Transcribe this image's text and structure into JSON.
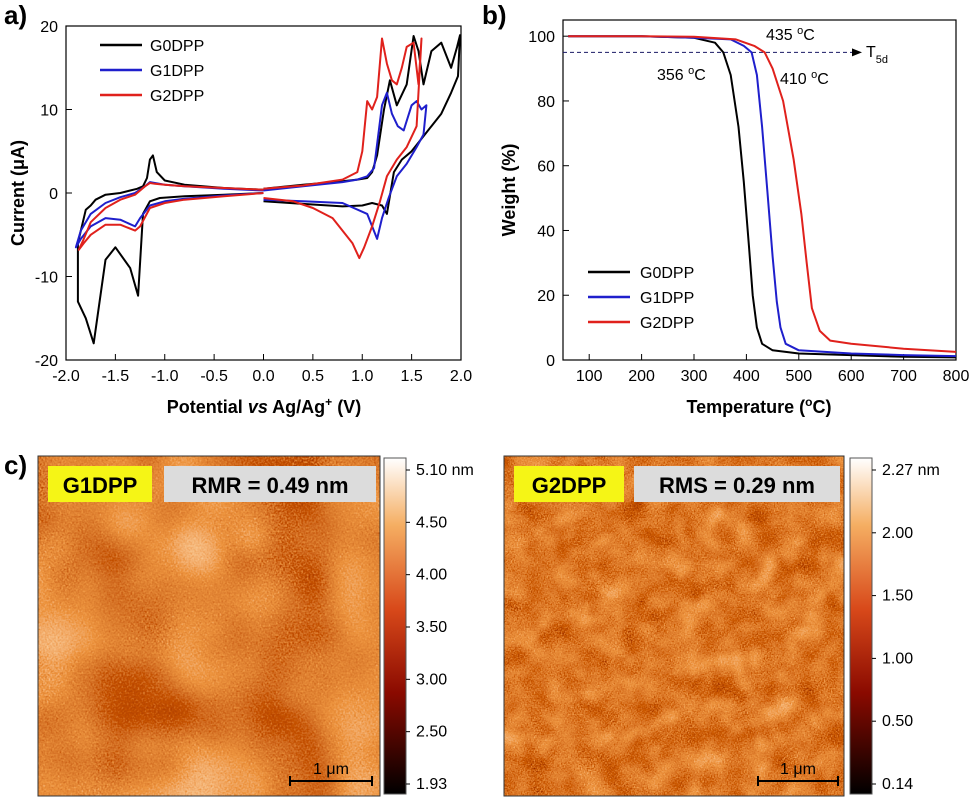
{
  "colors": {
    "G0DPP": "#000000",
    "G1DPP": "#1f1fcc",
    "G2DPP": "#e0211c"
  },
  "chart_data": [
    {
      "panel": "a)",
      "type": "line",
      "xlabel_pre": "Potential ",
      "xlabel_it": "vs",
      "xlabel_mid": " Ag/Ag",
      "xlabel_sup": "+",
      "xlabel_post": " (V)",
      "ylabel": "Current (μA)",
      "xlim": [
        -2.0,
        2.0
      ],
      "ylim": [
        -20,
        20
      ],
      "xticks": [
        "-2.0",
        "-1.5",
        "-1.0",
        "-0.5",
        "0.0",
        "0.5",
        "1.0",
        "1.5",
        "2.0"
      ],
      "yticks": [
        "-20",
        "-10",
        "0",
        "10",
        "20"
      ],
      "legend_position": "top-left",
      "series": [
        {
          "name": "G0DPP",
          "color": "#000000",
          "x": [
            0.0,
            0.4,
            0.8,
            0.95,
            1.05,
            1.1,
            1.15,
            1.22,
            1.28,
            1.35,
            1.45,
            1.52,
            1.57,
            1.62,
            1.7,
            1.8,
            1.9,
            1.96,
            1.99,
            1.97,
            1.9,
            1.8,
            1.7,
            1.6,
            1.5,
            1.4,
            1.32,
            1.25,
            1.2,
            1.1,
            1.0,
            0.8,
            0.4,
            0.0
          ],
          "y": [
            0.5,
            1.0,
            1.4,
            1.6,
            1.8,
            2.5,
            4.5,
            10.0,
            13.5,
            10.5,
            13.0,
            18.8,
            17.0,
            13.0,
            17.0,
            18.0,
            15.0,
            17.5,
            18.9,
            14.0,
            12.0,
            9.5,
            8.0,
            6.5,
            5.0,
            4.0,
            2.5,
            -2.5,
            -1.5,
            -1.2,
            -1.5,
            -1.6,
            -1.3,
            -1.0
          ]
        },
        {
          "name": "G1DPP",
          "color": "#1f1fcc",
          "x": [
            0.0,
            0.4,
            0.8,
            0.95,
            1.05,
            1.12,
            1.2,
            1.25,
            1.3,
            1.36,
            1.42,
            1.5,
            1.55,
            1.6,
            1.65,
            1.62,
            1.55,
            1.45,
            1.35,
            1.27,
            1.2,
            1.15,
            1.05,
            0.8,
            0.4,
            0.0
          ],
          "y": [
            0.3,
            0.8,
            1.3,
            1.6,
            2.0,
            3.0,
            10.5,
            12.0,
            9.5,
            8.0,
            7.5,
            10.5,
            11.0,
            10.0,
            10.5,
            7.0,
            5.5,
            3.5,
            2.0,
            -0.5,
            -3.0,
            -5.5,
            -2.5,
            -1.2,
            -1.0,
            -0.8
          ]
        },
        {
          "name": "G2DPP",
          "color": "#e0211c",
          "x": [
            0.0,
            0.4,
            0.8,
            0.95,
            1.0,
            1.05,
            1.1,
            1.15,
            1.2,
            1.25,
            1.3,
            1.35,
            1.4,
            1.45,
            1.52,
            1.57,
            1.6,
            1.55,
            1.45,
            1.35,
            1.25,
            1.18,
            1.1,
            1.02,
            0.97,
            0.9,
            0.7,
            0.5,
            0.3,
            0.0
          ],
          "y": [
            0.5,
            0.9,
            1.6,
            2.5,
            5.0,
            11.0,
            10.0,
            11.5,
            18.5,
            15.5,
            13.5,
            13.0,
            15.0,
            17.5,
            18.0,
            13.0,
            18.5,
            8.0,
            5.5,
            4.0,
            2.0,
            -1.0,
            -4.0,
            -6.5,
            -7.8,
            -6.0,
            -3.0,
            -1.8,
            -1.0,
            -0.6
          ]
        },
        {
          "name": "G0DPP-neg",
          "color": "#000000",
          "x": [
            0.0,
            -0.4,
            -0.8,
            -1.0,
            -1.08,
            -1.12,
            -1.15,
            -1.18,
            -1.22,
            -1.28,
            -1.35,
            -1.45,
            -1.6,
            -1.7,
            -1.75,
            -1.8,
            -1.88,
            -1.88,
            -1.8,
            -1.72,
            -1.6,
            -1.5,
            -1.35,
            -1.27,
            -1.22,
            -1.15,
            -1.05,
            -0.8,
            -0.4,
            0.0
          ],
          "y": [
            0.4,
            0.6,
            1.0,
            1.5,
            2.5,
            4.5,
            4.0,
            1.8,
            0.8,
            0.5,
            0.3,
            0.0,
            -0.2,
            -0.8,
            -1.5,
            -2.0,
            -6.0,
            -13.0,
            -15.0,
            -18.0,
            -8.0,
            -6.5,
            -9.0,
            -12.3,
            -2.5,
            -1.0,
            -0.6,
            -0.4,
            -0.2,
            0.0
          ]
        },
        {
          "name": "G1DPP-neg",
          "color": "#1f1fcc",
          "x": [
            0.0,
            -0.4,
            -0.8,
            -1.0,
            -1.1,
            -1.15,
            -1.2,
            -1.3,
            -1.45,
            -1.6,
            -1.75,
            -1.85,
            -1.9,
            -1.85,
            -1.75,
            -1.6,
            -1.45,
            -1.3,
            -1.25,
            -1.15,
            -1.0,
            -0.8,
            -0.4,
            0.0
          ],
          "y": [
            0.3,
            0.5,
            0.8,
            1.0,
            1.2,
            1.3,
            0.8,
            0.0,
            -0.5,
            -1.2,
            -2.5,
            -4.5,
            -6.5,
            -5.5,
            -4.0,
            -3.0,
            -3.2,
            -4.0,
            -3.0,
            -1.5,
            -1.0,
            -0.7,
            -0.3,
            0.0
          ]
        },
        {
          "name": "G2DPP-neg",
          "color": "#e0211c",
          "x": [
            0.0,
            -0.4,
            -0.8,
            -1.0,
            -1.1,
            -1.15,
            -1.2,
            -1.3,
            -1.45,
            -1.6,
            -1.75,
            -1.82,
            -1.87,
            -1.82,
            -1.75,
            -1.6,
            -1.45,
            -1.3,
            -1.25,
            -1.15,
            -1.0,
            -0.8,
            -0.4,
            0.0
          ],
          "y": [
            0.4,
            0.6,
            0.8,
            1.0,
            1.1,
            1.2,
            0.8,
            -0.2,
            -0.8,
            -1.8,
            -3.5,
            -5.5,
            -6.8,
            -6.0,
            -5.0,
            -3.8,
            -3.8,
            -4.5,
            -4.0,
            -1.8,
            -1.2,
            -0.8,
            -0.4,
            0.0
          ]
        }
      ]
    },
    {
      "panel": "b)",
      "type": "line",
      "xlabel_pre": "Temperature (",
      "xlabel_sup": "o",
      "xlabel_post": "C)",
      "ylabel": "Weight (%)",
      "xlim": [
        50,
        800
      ],
      "ylim": [
        0,
        105
      ],
      "xticks": [
        "100",
        "200",
        "300",
        "400",
        "500",
        "600",
        "700",
        "800"
      ],
      "yticks": [
        "0",
        "20",
        "40",
        "60",
        "80",
        "100"
      ],
      "legend_position": "bottom-left",
      "threshold": {
        "y": 95,
        "label": "T",
        "label_sub": "5d"
      },
      "annotations": [
        {
          "text": "356 ",
          "sup": "o",
          "post": "C",
          "color": "#000000"
        },
        {
          "text": "410 ",
          "sup": "o",
          "post": "C",
          "color": "#1f1fcc"
        },
        {
          "text": "435 ",
          "sup": "o",
          "post": "C",
          "color": "#e0211c"
        }
      ],
      "series": [
        {
          "name": "G0DPP",
          "color": "#000000",
          "x": [
            60,
            200,
            300,
            340,
            356,
            370,
            385,
            395,
            405,
            412,
            420,
            430,
            450,
            500,
            600,
            700,
            800
          ],
          "y": [
            100,
            100,
            99.5,
            98,
            95,
            88,
            72,
            55,
            35,
            20,
            10,
            5,
            3,
            2,
            1.5,
            1,
            0.8
          ]
        },
        {
          "name": "G1DPP",
          "color": "#1f1fcc",
          "x": [
            60,
            200,
            300,
            370,
            395,
            410,
            420,
            430,
            440,
            450,
            458,
            465,
            475,
            500,
            600,
            700,
            800
          ],
          "y": [
            100,
            100,
            99.5,
            99,
            97,
            95,
            88,
            72,
            52,
            32,
            18,
            10,
            5,
            3,
            2,
            1.5,
            1.2
          ]
        },
        {
          "name": "G2DPP",
          "color": "#e0211c",
          "x": [
            60,
            200,
            300,
            380,
            415,
            435,
            450,
            470,
            490,
            505,
            515,
            525,
            540,
            560,
            600,
            700,
            800
          ],
          "y": [
            100,
            100,
            99.8,
            99,
            97,
            95,
            90,
            80,
            62,
            45,
            30,
            16,
            9,
            6,
            5,
            3.5,
            2.5
          ]
        }
      ]
    }
  ],
  "panel_c": {
    "label": "c)",
    "left": {
      "sample": "G1DPP",
      "stat": "RMR = 0.49 nm",
      "scalebar": "1 μm",
      "colorbar_ticks": [
        "5.10 nm",
        "4.50",
        "4.00",
        "3.50",
        "3.00",
        "2.50",
        "1.93"
      ]
    },
    "right": {
      "sample": "G2DPP",
      "stat": "RMS = 0.29 nm",
      "scalebar": "1 μm",
      "colorbar_ticks": [
        "2.27 nm",
        "2.00",
        "1.50",
        "1.00",
        "0.50",
        "0.14"
      ]
    }
  }
}
